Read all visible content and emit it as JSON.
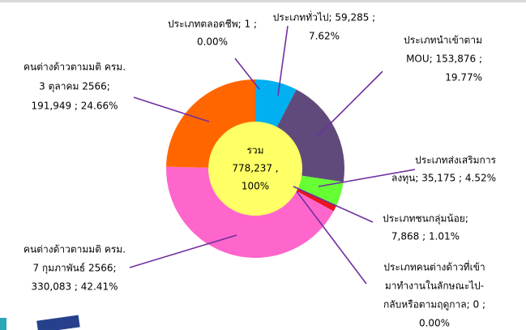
{
  "chart_data": {
    "type": "donut",
    "slices": [
      {
        "label_lines": [
          "ประเภทตลอดชีพ; 1 ;",
          "0.00%"
        ],
        "value": 1,
        "color": "#1f3864"
      },
      {
        "label_lines": [
          "ประเภททั่วไป; 59,285 ;",
          "7.62%"
        ],
        "value": 59285,
        "color": "#00b0f0"
      },
      {
        "label_lines": [
          "ประเภทนำเข้าตาม",
          "MOU; 153,876 ;",
          "19.77%"
        ],
        "value": 153876,
        "color": "#604a7b"
      },
      {
        "label_lines": [
          "ประเภทส่งเสริมการ",
          "ลงทุน; 35,175 ; 4.52%"
        ],
        "value": 35175,
        "color": "#66ff33"
      },
      {
        "label_lines": [
          "ประเภทชนกลุ่มน้อย;",
          "7,868 ; 1.01%"
        ],
        "value": 7868,
        "color": "#e8141e"
      },
      {
        "label_lines": [
          "ประเภทคนต่างด้าวที่เข้า",
          "มาทำงานในลักษณะไป-",
          "กลับหรือตามฤดูกาล; 0 ;",
          "0.00%"
        ],
        "value": 0,
        "color": "#7f7f7f"
      },
      {
        "label_lines": [
          "คนต่างด้าวตามมติ ครม.",
          "7 กุมภาพันธ์ 2566;",
          "330,083 ; 42.41%"
        ],
        "value": 330083,
        "color": "#ff66cc"
      },
      {
        "label_lines": [
          "คนต่างด้าวตามมติ ครม.",
          "3 ตุลาคม 2566;",
          "191,949 ; 24.66%"
        ],
        "value": 191949,
        "color": "#ff6600"
      }
    ],
    "center_lines": [
      "รวม",
      "778,237 ,",
      "100%"
    ],
    "center_color": "#ffff66"
  }
}
